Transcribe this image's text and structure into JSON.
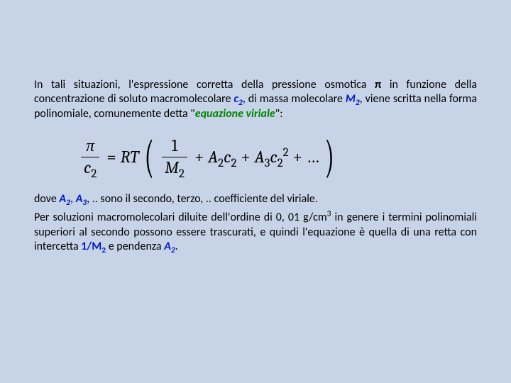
{
  "background_color": "#c7d4e8",
  "text_color": "#000000",
  "blue_color": "#0018c8",
  "green_color": "#008600",
  "body_fontsize": 16,
  "eq_fontsize": 24,
  "p1": {
    "t1": "In tali situazioni, l'espressione corretta della pressione osmotica ",
    "pi": "π",
    "t2": " in funzione della concentrazione di soluto macromolecolare ",
    "c2": "c",
    "c2s": "2",
    "t3": ", di massa molecolare ",
    "m2": "M",
    "m2s": "2",
    "t4": ", viene scritta nella forma polinomiale, comunemente detta \"",
    "eqv": "equazione viriale",
    "t5": "\":"
  },
  "eq": {
    "pi": "π",
    "c2": "c",
    "c2s": "2",
    "eq": "=",
    "R": "R",
    "T": "T",
    "lp": "(",
    "one": "1",
    "M2": "M",
    "M2s": "2",
    "plus": "+",
    "A2": "A",
    "A2s": "2",
    "A3": "A",
    "A3s": "3",
    "sq": "2",
    "dots": "…",
    "rp": ")"
  },
  "p2": {
    "t1": "dove ",
    "A2": "A",
    "A2s": "2",
    "t2": ", ",
    "A3": "A",
    "A3s": "3",
    "t3": ", .. sono il secondo, terzo, .. coefficiente del viriale."
  },
  "p3": {
    "t1": "Per soluzioni macromolecolari diluite dell'ordine di 0, 01 g/cm",
    "p3sup": "3",
    "t2": " in genere i termini polinomiali superiori al secondo possono essere trascurati, e quindi l'equazione è quella di una retta con intercetta ",
    "im": "1/M",
    "ims": "2",
    "t3": " e pendenza ",
    "pa": "A",
    "pas": "2",
    "t4": "."
  }
}
